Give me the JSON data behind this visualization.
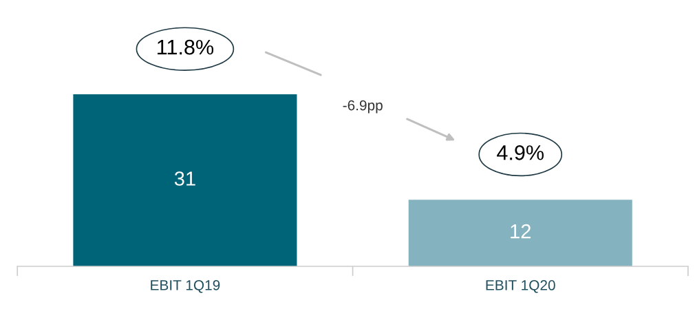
{
  "chart_data": {
    "type": "bar",
    "categories": [
      "EBIT 1Q19",
      "EBIT 1Q20"
    ],
    "values": [
      31,
      12
    ],
    "colors": [
      "#006478",
      "#84b3bf"
    ],
    "data_labels": true,
    "annotations": [
      "11.8%",
      "4.9%",
      "-6.9pp"
    ]
  }
}
